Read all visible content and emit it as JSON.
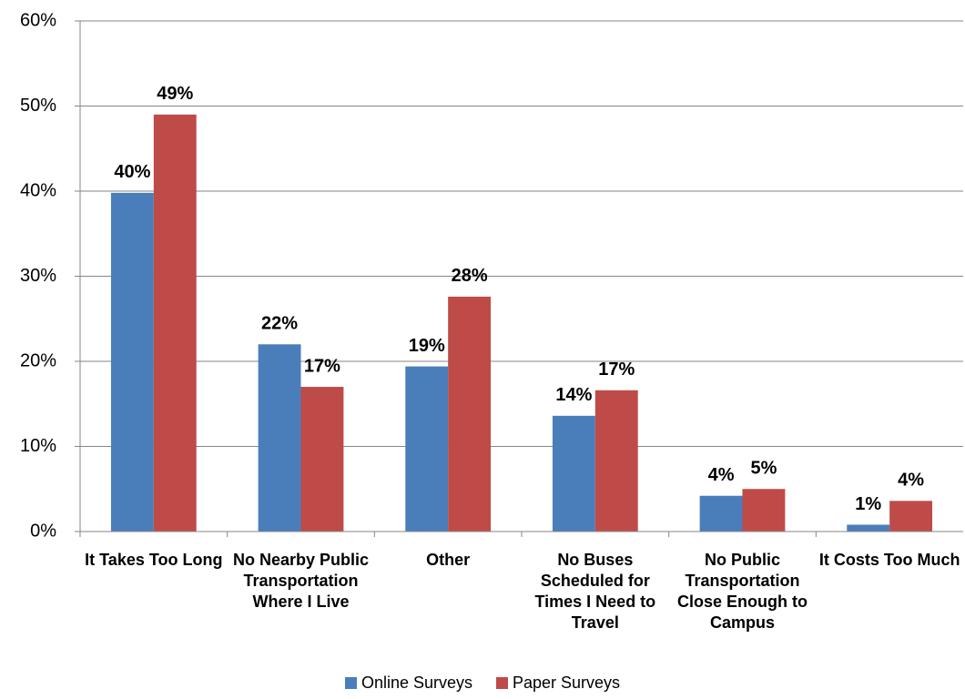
{
  "chart_data": {
    "type": "bar",
    "categories": [
      "It Takes Too Long",
      "No Nearby Public Transportation Where I Live",
      "Other",
      "No Buses Scheduled for Times I Need to Travel",
      "No Public Transportation Close Enough to Campus",
      "It Costs Too Much"
    ],
    "series": [
      {
        "name": "Online Surveys",
        "color": "#4a7ebb",
        "values": [
          39.8,
          22,
          19.4,
          13.6,
          4.2,
          0.8
        ],
        "value_labels": [
          "40%",
          "22%",
          "19%",
          "14%",
          "4%",
          "1%"
        ]
      },
      {
        "name": "Paper Surveys",
        "color": "#be4b48",
        "values": [
          49,
          17,
          27.6,
          16.6,
          5,
          3.6
        ],
        "value_labels": [
          "49%",
          "17%",
          "28%",
          "17%",
          "5%",
          "4%"
        ]
      }
    ],
    "ylim": [
      0,
      60
    ],
    "yticks": [
      {
        "value": 0,
        "label": "0%"
      },
      {
        "value": 10,
        "label": "10%"
      },
      {
        "value": 20,
        "label": "20%"
      },
      {
        "value": 30,
        "label": "30%"
      },
      {
        "value": 40,
        "label": "40%"
      },
      {
        "value": 50,
        "label": "50%"
      },
      {
        "value": 60,
        "label": "60%"
      }
    ],
    "grid": true,
    "legend": "bottom"
  }
}
